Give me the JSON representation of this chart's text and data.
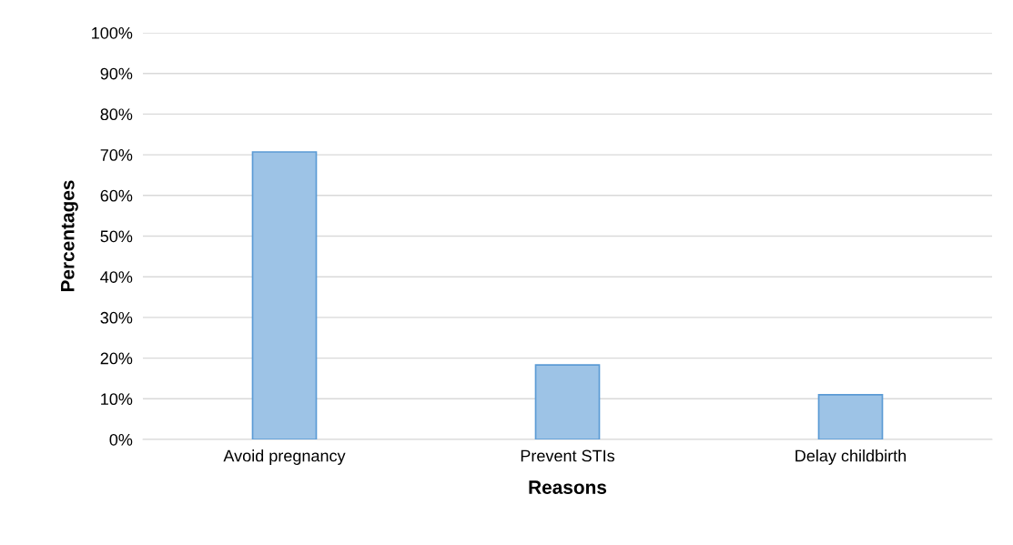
{
  "chart_data": {
    "type": "bar",
    "xlabel": "Reasons",
    "ylabel": "Percentages",
    "categories": [
      "Avoid pregnancy",
      "Prevent STIs",
      "Delay childbirth"
    ],
    "series": [
      {
        "color": "#9dc3e6",
        "values": [
          70.7,
          18.3,
          11.0
        ]
      }
    ],
    "ylim": [
      0,
      100
    ],
    "yticks": [
      {
        "value": 0,
        "label": "0%"
      },
      {
        "value": 10,
        "label": "10%"
      },
      {
        "value": 20,
        "label": "20%"
      },
      {
        "value": 30,
        "label": "30%"
      },
      {
        "value": 40,
        "label": "40%"
      },
      {
        "value": 50,
        "label": "50%"
      },
      {
        "value": 60,
        "label": "60%"
      },
      {
        "value": 70,
        "label": "70%"
      },
      {
        "value": 80,
        "label": "80%"
      },
      {
        "value": 90,
        "label": "90%"
      },
      {
        "value": 100,
        "label": "100%"
      }
    ],
    "grid": "y",
    "legend": false
  }
}
